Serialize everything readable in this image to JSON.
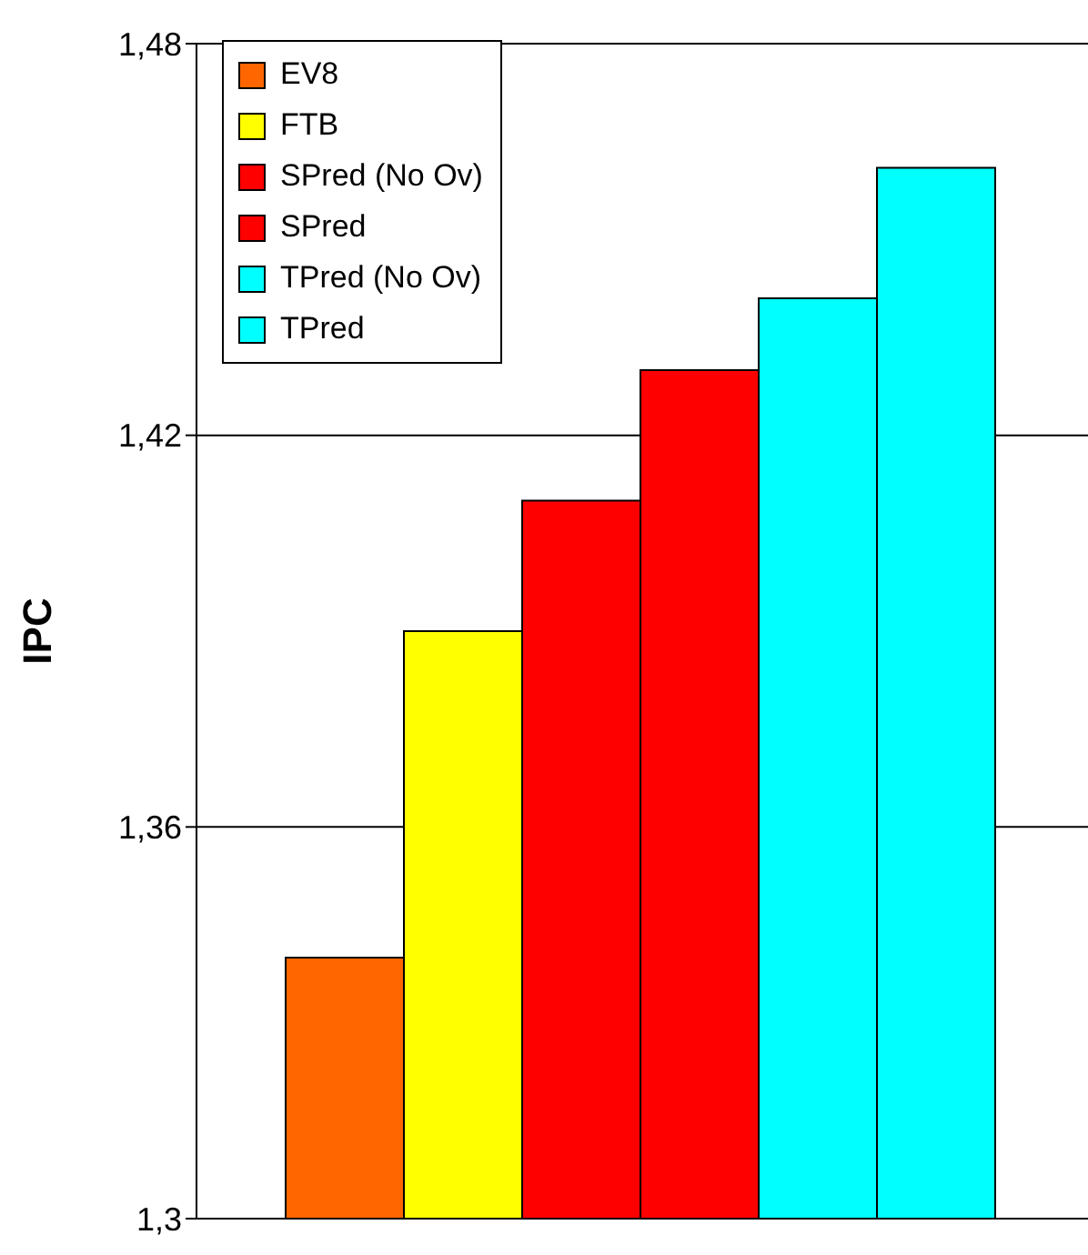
{
  "chart_data": {
    "type": "bar",
    "ylabel": "IPC",
    "categories": [
      null
    ],
    "series": [
      {
        "name": "EV8",
        "color": "#ff6600",
        "values": [
          1.34
        ]
      },
      {
        "name": "FTB",
        "color": "#ffff00",
        "values": [
          1.39
        ]
      },
      {
        "name": "SPred (No Ov)",
        "color": "#ff0000",
        "values": [
          1.41
        ]
      },
      {
        "name": "SPred",
        "color": "#ff0000",
        "values": [
          1.43
        ]
      },
      {
        "name": "TPred (No Ov)",
        "color": "#00ffff",
        "values": [
          1.441
        ]
      },
      {
        "name": "TPred",
        "color": "#00ffff",
        "values": [
          1.461
        ]
      }
    ],
    "ylim": [
      1.3,
      1.48
    ],
    "yticks": [
      {
        "value": 1.3,
        "label": "1,3"
      },
      {
        "value": 1.36,
        "label": "1,36"
      },
      {
        "value": 1.42,
        "label": "1,42"
      },
      {
        "value": 1.48,
        "label": "1,48"
      }
    ],
    "grid": "y",
    "legend": "top left",
    "tick_labels": "y"
  }
}
